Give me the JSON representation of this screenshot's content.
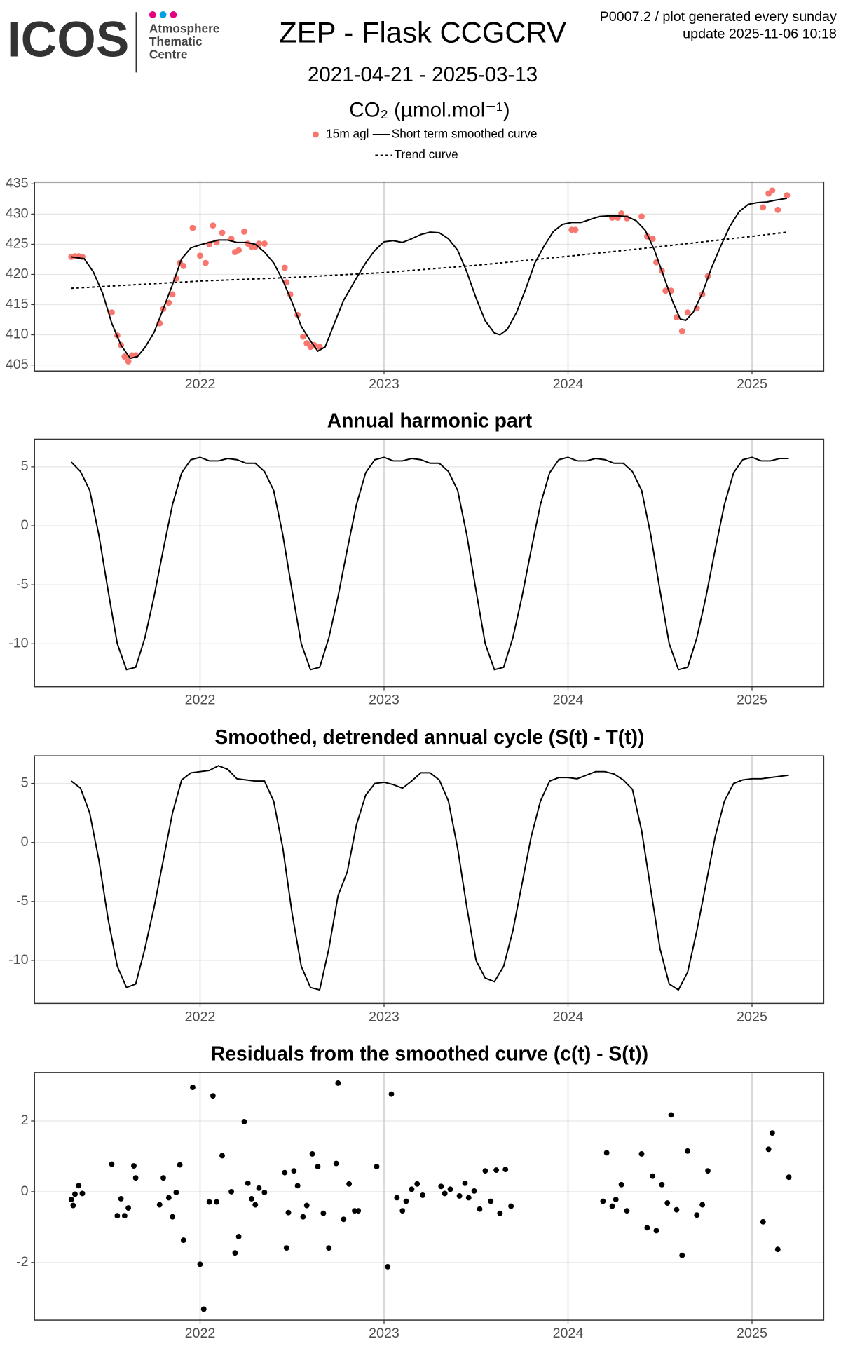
{
  "header": {
    "logo": "ICOS",
    "logo_caption": [
      "Atmosphere",
      "Thematic",
      "Centre"
    ],
    "note": [
      "P0007.2 / plot generated every sunday",
      "update  2025-11-06 10:18"
    ]
  },
  "chart_data": [
    {
      "type": "line",
      "title": "ZEP - Flask CCGCRV",
      "subtitle": "2021-04-21 - 2025-03-13",
      "ylabel": "CO₂ (µmol.mol⁻¹)",
      "legend": "top",
      "grid": true,
      "xlim": [
        2021.1,
        2025.39
      ],
      "xticks": [
        2022,
        2023,
        2024,
        2025
      ],
      "ylim": [
        404,
        435.3
      ],
      "yticks": [
        405,
        410,
        415,
        420,
        425,
        430,
        435
      ],
      "series": [
        {
          "name": "15m agl",
          "type": "scatter",
          "color": "#f8766d",
          "x": [
            2021.3,
            2021.32,
            2021.34,
            2021.36,
            2021.52,
            2021.55,
            2021.57,
            2021.59,
            2021.61,
            2021.63,
            2021.65,
            2021.78,
            2021.8,
            2021.83,
            2021.85,
            2021.87,
            2021.89,
            2021.91,
            2021.96,
            2022.0,
            2022.03,
            2022.05,
            2022.07,
            2022.09,
            2022.12,
            2022.17,
            2022.19,
            2022.21,
            2022.24,
            2022.26,
            2022.28,
            2022.3,
            2022.32,
            2022.35,
            2022.46,
            2022.47,
            2022.49,
            2022.53,
            2022.56,
            2022.58,
            2022.6,
            2022.62,
            2022.65,
            2024.02,
            2024.04,
            2024.24,
            2024.27,
            2024.29,
            2024.32,
            2024.4,
            2024.43,
            2024.46,
            2024.48,
            2024.51,
            2024.53,
            2024.56,
            2024.59,
            2024.62,
            2024.65,
            2024.7,
            2024.73,
            2024.76,
            2025.06,
            2025.09,
            2025.11,
            2025.14,
            2025.19
          ],
          "values": [
            422.9,
            423.0,
            423.0,
            422.9,
            413.7,
            409.9,
            408.3,
            406.4,
            405.6,
            406.6,
            406.6,
            411.9,
            414.3,
            415.3,
            416.7,
            419.3,
            421.9,
            421.4,
            427.7,
            423.1,
            421.9,
            425.0,
            428.1,
            425.3,
            426.9,
            425.9,
            423.7,
            424.0,
            427.1,
            425.1,
            424.6,
            424.6,
            425.1,
            425.1,
            421.1,
            418.7,
            416.7,
            413.3,
            409.7,
            408.6,
            408.0,
            408.3,
            408.0,
            427.4,
            427.4,
            429.4,
            429.4,
            430.1,
            429.3,
            429.6,
            426.3,
            425.9,
            422.0,
            420.6,
            417.3,
            417.3,
            412.9,
            410.6,
            413.7,
            414.4,
            416.7,
            419.7,
            431.1,
            433.4,
            433.9,
            430.7,
            433.1
          ]
        },
        {
          "name": "Short term smoothed curve",
          "type": "line",
          "color": "#000000",
          "dash": "solid",
          "x": [
            2021.3,
            2021.37,
            2021.42,
            2021.47,
            2021.52,
            2021.57,
            2021.62,
            2021.66,
            2021.7,
            2021.75,
            2021.8,
            2021.85,
            2021.9,
            2021.95,
            2022.0,
            2022.05,
            2022.1,
            2022.15,
            2022.2,
            2022.25,
            2022.3,
            2022.35,
            2022.4,
            2022.45,
            2022.5,
            2022.55,
            2022.6,
            2022.64,
            2022.68,
            2022.73,
            2022.78,
            2022.85,
            2022.9,
            2022.95,
            2023.0,
            2023.05,
            2023.1,
            2023.15,
            2023.2,
            2023.25,
            2023.3,
            2023.35,
            2023.4,
            2023.45,
            2023.5,
            2023.55,
            2023.6,
            2023.63,
            2023.67,
            2023.72,
            2023.77,
            2023.82,
            2023.87,
            2023.92,
            2023.97,
            2024.02,
            2024.07,
            2024.12,
            2024.17,
            2024.22,
            2024.27,
            2024.32,
            2024.37,
            2024.42,
            2024.47,
            2024.52,
            2024.57,
            2024.61,
            2024.64,
            2024.68,
            2024.73,
            2024.78,
            2024.83,
            2024.88,
            2024.93,
            2024.98,
            2025.03,
            2025.08,
            2025.13,
            2025.19
          ],
          "values": [
            422.9,
            422.6,
            420.4,
            416.9,
            411.9,
            408.3,
            406.1,
            406.4,
            407.9,
            410.4,
            414.3,
            418.3,
            422.6,
            424.4,
            424.9,
            425.3,
            425.7,
            425.7,
            425.3,
            425.3,
            425.0,
            423.7,
            421.9,
            419.0,
            415.4,
            411.4,
            409.0,
            407.3,
            408.0,
            411.9,
            415.7,
            419.4,
            421.9,
            424.0,
            425.4,
            425.6,
            425.3,
            425.9,
            426.6,
            427.0,
            426.9,
            425.9,
            424.0,
            420.4,
            416.1,
            412.3,
            410.3,
            410.0,
            410.9,
            413.7,
            417.6,
            421.9,
            424.7,
            427.1,
            428.3,
            428.6,
            428.6,
            429.1,
            429.6,
            429.7,
            429.7,
            429.6,
            428.9,
            427.3,
            424.0,
            419.7,
            415.4,
            412.6,
            412.4,
            413.7,
            416.9,
            421.1,
            424.7,
            428.0,
            430.4,
            431.6,
            431.9,
            432.0,
            432.3,
            432.6
          ]
        },
        {
          "name": "Trend curve",
          "type": "line",
          "color": "#000000",
          "dash": "dashed",
          "x": [
            2021.3,
            2022,
            2022.5,
            2023,
            2023.5,
            2024,
            2024.5,
            2025,
            2025.19
          ],
          "values": [
            417.7,
            418.9,
            419.5,
            420.3,
            421.5,
            423.0,
            424.6,
            426.3,
            427.0
          ]
        }
      ]
    },
    {
      "type": "line",
      "title": "Annual harmonic part",
      "grid": true,
      "color": "#000000",
      "xlim": [
        2021.1,
        2025.39
      ],
      "xticks": [
        2022,
        2023,
        2024,
        2025
      ],
      "ylim": [
        -13.65,
        7.34
      ],
      "yticks": [
        -10,
        -5,
        0,
        5
      ],
      "x": [
        2021.3,
        2021.35,
        2021.4,
        2021.45,
        2021.5,
        2021.55,
        2021.6,
        2021.65,
        2021.7,
        2021.75,
        2021.8,
        2021.85,
        2021.9,
        2021.95,
        2022.0,
        2022.05,
        2022.1,
        2022.15,
        2022.2,
        2022.25,
        2022.3,
        2022.35,
        2022.4,
        2022.45,
        2022.5,
        2022.55,
        2022.6,
        2022.65,
        2022.7,
        2022.75,
        2022.8,
        2022.85,
        2022.9,
        2022.95,
        2023.0,
        2023.05,
        2023.1,
        2023.15,
        2023.2,
        2023.25,
        2023.3,
        2023.35,
        2023.4,
        2023.45,
        2023.5,
        2023.55,
        2023.6,
        2023.65,
        2023.7,
        2023.75,
        2023.8,
        2023.85,
        2023.9,
        2023.95,
        2024.0,
        2024.05,
        2024.1,
        2024.15,
        2024.2,
        2024.25,
        2024.3,
        2024.35,
        2024.4,
        2024.45,
        2024.5,
        2024.55,
        2024.6,
        2024.65,
        2024.7,
        2024.75,
        2024.8,
        2024.85,
        2024.9,
        2024.95,
        2025.0,
        2025.05,
        2025.1,
        2025.15,
        2025.2
      ],
      "values": [
        5.4,
        4.6,
        3.0,
        -0.8,
        -5.5,
        -10.0,
        -12.2,
        -12.0,
        -9.5,
        -6.0,
        -2.0,
        1.8,
        4.5,
        5.6,
        5.8,
        5.5,
        5.5,
        5.7,
        5.6,
        5.3,
        5.3,
        4.6,
        3.0,
        -0.8,
        -5.5,
        -10.0,
        -12.2,
        -12.0,
        -9.5,
        -6.0,
        -2.0,
        1.8,
        4.5,
        5.6,
        5.8,
        5.5,
        5.5,
        5.7,
        5.6,
        5.3,
        5.3,
        4.6,
        3.0,
        -0.8,
        -5.5,
        -10.0,
        -12.2,
        -12.0,
        -9.5,
        -6.0,
        -2.0,
        1.8,
        4.5,
        5.6,
        5.8,
        5.5,
        5.5,
        5.7,
        5.6,
        5.3,
        5.3,
        4.6,
        3.0,
        -0.8,
        -5.5,
        -10.0,
        -12.2,
        -12.0,
        -9.5,
        -6.0,
        -2.0,
        1.8,
        4.5,
        5.6,
        5.8,
        5.5,
        5.5,
        5.7,
        5.7
      ]
    },
    {
      "type": "line",
      "title": "Smoothed, detrended annual cycle (S(t) - T(t))",
      "grid": true,
      "color": "#000000",
      "xlim": [
        2021.1,
        2025.39
      ],
      "xticks": [
        2022,
        2023,
        2024,
        2025
      ],
      "ylim": [
        -13.65,
        7.34
      ],
      "yticks": [
        -10,
        -5,
        0,
        5
      ],
      "x": [
        2021.3,
        2021.35,
        2021.4,
        2021.45,
        2021.5,
        2021.55,
        2021.6,
        2021.65,
        2021.7,
        2021.75,
        2021.8,
        2021.85,
        2021.9,
        2021.95,
        2022.0,
        2022.05,
        2022.1,
        2022.15,
        2022.2,
        2022.25,
        2022.3,
        2022.35,
        2022.4,
        2022.45,
        2022.5,
        2022.55,
        2022.6,
        2022.65,
        2022.7,
        2022.75,
        2022.8,
        2022.85,
        2022.9,
        2022.95,
        2023.0,
        2023.05,
        2023.1,
        2023.15,
        2023.2,
        2023.25,
        2023.3,
        2023.35,
        2023.4,
        2023.45,
        2023.5,
        2023.55,
        2023.6,
        2023.65,
        2023.7,
        2023.75,
        2023.8,
        2023.85,
        2023.9,
        2023.95,
        2024.0,
        2024.05,
        2024.1,
        2024.15,
        2024.2,
        2024.25,
        2024.3,
        2024.35,
        2024.4,
        2024.45,
        2024.5,
        2024.55,
        2024.6,
        2024.65,
        2024.7,
        2024.75,
        2024.8,
        2024.85,
        2024.9,
        2024.95,
        2025.0,
        2025.05,
        2025.1,
        2025.15,
        2025.2
      ],
      "values": [
        5.2,
        4.6,
        2.5,
        -1.5,
        -6.5,
        -10.5,
        -12.3,
        -12.0,
        -9.0,
        -5.5,
        -1.5,
        2.5,
        5.3,
        5.9,
        6.0,
        6.1,
        6.5,
        6.2,
        5.4,
        5.3,
        5.2,
        5.2,
        3.5,
        -0.5,
        -6.0,
        -10.5,
        -12.3,
        -12.5,
        -9.0,
        -4.5,
        -2.5,
        1.5,
        4.0,
        5.0,
        5.1,
        4.9,
        4.6,
        5.2,
        5.9,
        5.9,
        5.3,
        3.5,
        -0.5,
        -5.5,
        -10.0,
        -11.5,
        -11.8,
        -10.5,
        -7.5,
        -3.5,
        0.5,
        3.5,
        5.2,
        5.5,
        5.5,
        5.4,
        5.7,
        6.0,
        6.0,
        5.8,
        5.3,
        4.5,
        1.0,
        -4.0,
        -9.0,
        -12.0,
        -12.5,
        -11.0,
        -7.5,
        -3.5,
        0.5,
        3.5,
        5.0,
        5.3,
        5.4,
        5.4,
        5.5,
        5.6,
        5.7
      ]
    },
    {
      "type": "scatter",
      "title": "Residuals from the smoothed curve (c(t) - S(t))",
      "grid": true,
      "color": "#000000",
      "xlim": [
        2021.1,
        2025.39
      ],
      "xticks": [
        2022,
        2023,
        2024,
        2025
      ],
      "ylim": [
        -3.63,
        3.37
      ],
      "yticks": [
        -2,
        0,
        2
      ],
      "x": [
        2021.3,
        2021.31,
        2021.32,
        2021.34,
        2021.36,
        2021.52,
        2021.55,
        2021.57,
        2021.59,
        2021.61,
        2021.64,
        2021.65,
        2021.78,
        2021.8,
        2021.83,
        2021.85,
        2021.87,
        2021.89,
        2021.91,
        2021.96,
        2022.0,
        2022.02,
        2022.05,
        2022.07,
        2022.09,
        2022.12,
        2022.17,
        2022.19,
        2022.21,
        2022.24,
        2022.26,
        2022.28,
        2022.3,
        2022.32,
        2022.35,
        2022.46,
        2022.47,
        2022.48,
        2022.51,
        2022.53,
        2022.56,
        2022.58,
        2022.61,
        2022.64,
        2022.67,
        2022.7,
        2022.74,
        2022.75,
        2022.78,
        2022.81,
        2022.84,
        2022.86,
        2022.96,
        2023.02,
        2023.04,
        2023.07,
        2023.1,
        2023.12,
        2023.15,
        2023.18,
        2023.21,
        2023.31,
        2023.33,
        2023.36,
        2023.41,
        2023.44,
        2023.46,
        2023.49,
        2023.52,
        2023.55,
        2023.58,
        2023.61,
        2023.63,
        2023.66,
        2023.69,
        2024.19,
        2024.21,
        2024.24,
        2024.26,
        2024.29,
        2024.32,
        2024.4,
        2024.43,
        2024.46,
        2024.48,
        2024.51,
        2024.54,
        2024.56,
        2024.59,
        2024.62,
        2024.65,
        2024.7,
        2024.73,
        2024.76,
        2025.06,
        2025.09,
        2025.11,
        2025.14,
        2025.2
      ],
      "values": [
        -0.22,
        -0.39,
        -0.07,
        0.17,
        -0.05,
        0.78,
        -0.68,
        -0.2,
        -0.68,
        -0.46,
        0.73,
        0.39,
        -0.37,
        0.39,
        -0.17,
        -0.71,
        -0.02,
        0.76,
        -1.37,
        2.95,
        -2.05,
        -3.32,
        -0.29,
        2.71,
        -0.29,
        1.02,
        0.0,
        -1.73,
        -1.27,
        1.98,
        0.24,
        -0.2,
        -0.37,
        0.1,
        -0.02,
        0.54,
        -1.59,
        -0.59,
        0.59,
        0.17,
        -0.71,
        -0.39,
        1.07,
        0.71,
        -0.61,
        -1.59,
        0.8,
        3.07,
        -0.78,
        0.22,
        -0.54,
        -0.54,
        0.71,
        -2.12,
        2.76,
        -0.17,
        -0.54,
        -0.27,
        0.07,
        0.22,
        -0.1,
        0.15,
        -0.05,
        0.07,
        -0.12,
        0.24,
        -0.17,
        0.02,
        -0.49,
        0.59,
        -0.27,
        0.61,
        -0.61,
        0.63,
        -0.41,
        -0.27,
        1.1,
        -0.41,
        -0.22,
        0.2,
        -0.54,
        1.07,
        -1.02,
        0.44,
        -1.1,
        0.2,
        -0.32,
        2.17,
        -0.51,
        -1.8,
        1.15,
        -0.66,
        -0.37,
        0.59,
        -0.85,
        1.2,
        1.66,
        -1.63,
        0.41
      ]
    }
  ]
}
